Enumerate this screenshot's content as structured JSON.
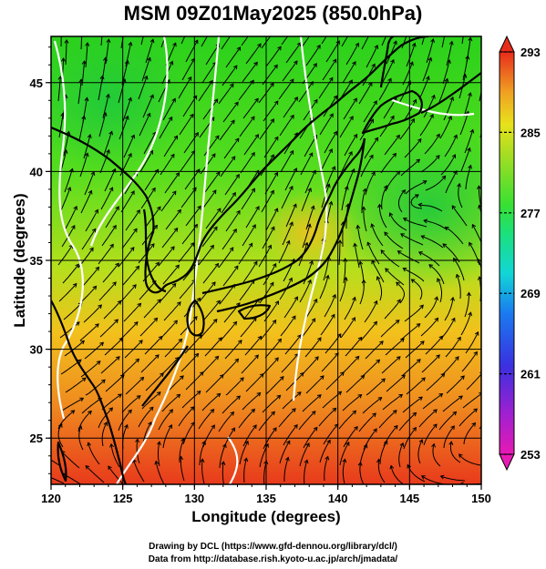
{
  "title": "MSM 09Z01May2025 (850.0hPa)",
  "xlabel": "Longitude (degrees)",
  "ylabel": "Latitude (degrees)",
  "x_ticks": [
    "120",
    "125",
    "130",
    "135",
    "140",
    "145",
    "150"
  ],
  "y_ticks": [
    "25",
    "30",
    "35",
    "40",
    "45"
  ],
  "colorbar_ticks": [
    "253",
    "261",
    "269",
    "277",
    "285",
    "293"
  ],
  "credit_line1": "Drawing by DCL (https://www.gfd-dennou.org/library/dcl/)",
  "credit_line2": "Data from http://database.rish.kyoto-u.ac.jp/arch/jmadata/",
  "map": {
    "lon_range": [
      120,
      150
    ],
    "lat_range": [
      22.4,
      47.6
    ],
    "grid": true,
    "field": "temperature (K) with wind streamlines",
    "colorbar_range": [
      253,
      293
    ],
    "colormap": [
      "#e81ab4",
      "#a020d0",
      "#3a30e0",
      "#1a7af0",
      "#12d6d6",
      "#1be07a",
      "#38e033",
      "#aadd22",
      "#e8e21c",
      "#f0a022",
      "#e85020",
      "#e82c1c"
    ],
    "highlight_contour_color": "#ffffff",
    "coast_color": "#000000"
  }
}
